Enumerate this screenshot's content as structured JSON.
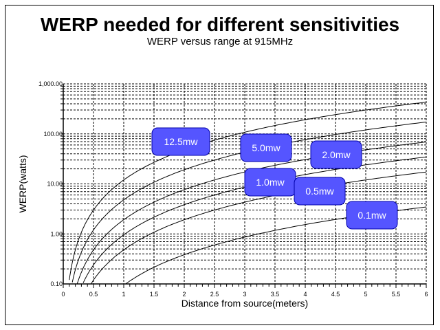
{
  "chart_data": {
    "type": "line",
    "title": "WERP needed for different sensitivities",
    "subtitle": "WERP versus range at 915MHz",
    "xlabel": "Distance from source(meters)",
    "ylabel": "WERP(watts)",
    "xlim": [
      0,
      6
    ],
    "ylim": [
      0.1,
      1000
    ],
    "yscale": "log",
    "grid": true,
    "legend": "inline labels",
    "x_ticks": [
      "0",
      "0.5",
      "1",
      "1.5",
      "2",
      "2.5",
      "3",
      "3.5",
      "4",
      "4.5",
      "5",
      "5.5",
      "6"
    ],
    "y_ticks": [
      "0.10",
      "1.00",
      "10.00",
      "100.00",
      "1,000.00"
    ],
    "label_color": "#5555ff",
    "series": [
      {
        "name": "12.5mw",
        "points": [
          [
            0.1,
            0.12
          ],
          [
            0.25,
            0.75
          ],
          [
            0.5,
            3
          ],
          [
            0.75,
            6.75
          ],
          [
            1,
            12
          ],
          [
            1.5,
            27
          ],
          [
            2,
            48
          ],
          [
            3,
            108
          ],
          [
            4,
            192
          ],
          [
            5,
            300
          ],
          [
            6,
            432
          ]
        ]
      },
      {
        "name": "5.0mw",
        "points": [
          [
            0.15,
            0.108
          ],
          [
            0.25,
            0.3
          ],
          [
            0.5,
            1.2
          ],
          [
            0.75,
            2.7
          ],
          [
            1,
            4.8
          ],
          [
            1.5,
            10.8
          ],
          [
            2,
            19.2
          ],
          [
            3,
            43.2
          ],
          [
            4,
            76.8
          ],
          [
            5,
            120
          ],
          [
            6,
            172.8
          ]
        ]
      },
      {
        "name": "2.0mw",
        "points": [
          [
            0.23,
            0.1
          ],
          [
            0.5,
            0.48
          ],
          [
            0.75,
            1.08
          ],
          [
            1,
            1.92
          ],
          [
            1.5,
            4.32
          ],
          [
            2,
            7.68
          ],
          [
            3,
            17.3
          ],
          [
            4,
            30.7
          ],
          [
            5,
            48
          ],
          [
            6,
            69.1
          ]
        ]
      },
      {
        "name": "1.0mw",
        "points": [
          [
            0.33,
            0.105
          ],
          [
            0.5,
            0.24
          ],
          [
            0.75,
            0.54
          ],
          [
            1,
            0.96
          ],
          [
            1.5,
            2.16
          ],
          [
            2,
            3.84
          ],
          [
            3,
            8.64
          ],
          [
            4,
            15.4
          ],
          [
            5,
            24
          ],
          [
            6,
            34.6
          ]
        ]
      },
      {
        "name": "0.5mw",
        "points": [
          [
            0.46,
            0.1
          ],
          [
            0.5,
            0.12
          ],
          [
            0.75,
            0.27
          ],
          [
            1,
            0.48
          ],
          [
            1.5,
            1.08
          ],
          [
            2,
            1.92
          ],
          [
            3,
            4.32
          ],
          [
            4,
            7.68
          ],
          [
            5,
            12
          ],
          [
            6,
            17.3
          ]
        ]
      },
      {
        "name": "0.1mw",
        "points": [
          [
            1.03,
            0.1
          ],
          [
            1.5,
            0.216
          ],
          [
            2,
            0.384
          ],
          [
            3,
            0.864
          ],
          [
            4,
            1.54
          ],
          [
            5,
            2.4
          ],
          [
            6,
            3.46
          ]
        ]
      }
    ]
  }
}
